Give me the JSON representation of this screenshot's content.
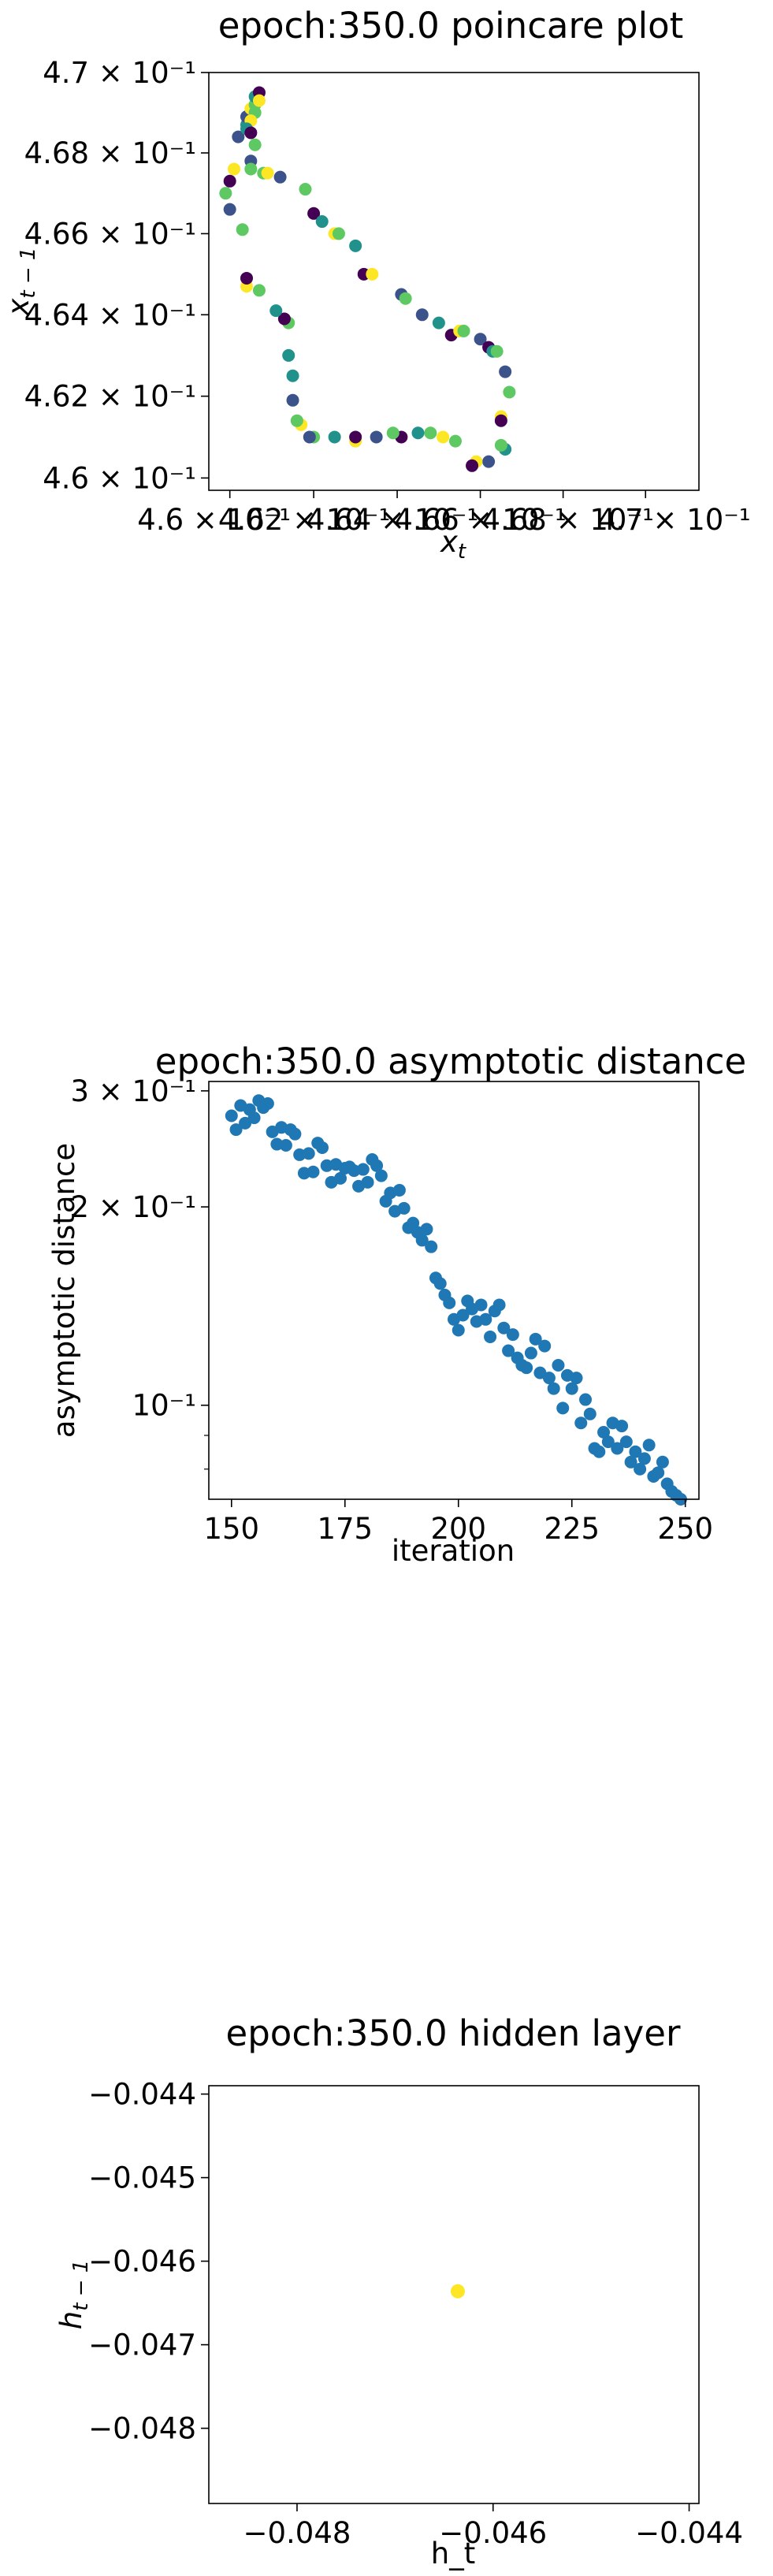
{
  "chart_data": [
    {
      "type": "scatter",
      "title": "epoch:350.0 poincare plot",
      "xlabel": "x_t",
      "ylabel": "x_t-1",
      "xscale": "log",
      "yscale": "log",
      "xlim": [
        0.4595,
        0.4713
      ],
      "ylim": [
        0.4597,
        0.47
      ],
      "x_ticks": [
        0.46,
        0.462,
        0.464,
        0.466,
        0.468,
        0.47
      ],
      "x_tick_labels": [
        "4.6 × 10⁻¹",
        "4.62 × 10⁻¹",
        "4.64 × 10⁻¹",
        "4.66 × 10⁻¹",
        "4.68 × 10⁻¹",
        "4.7 × 10⁻¹"
      ],
      "y_ticks": [
        0.46,
        0.462,
        0.464,
        0.466,
        0.468,
        0.47
      ],
      "y_tick_labels": [
        "4.6 × 10⁻¹",
        "4.62 × 10⁻¹",
        "4.64 × 10⁻¹",
        "4.66 × 10⁻¹",
        "4.68 × 10⁻¹",
        "4.7 × 10⁻¹"
      ],
      "grid": false,
      "colormap": "viridis",
      "palette": [
        "#440154",
        "#3b528b",
        "#21918c",
        "#5ec962",
        "#fde725"
      ],
      "points": [
        {
          "x": 0.46,
          "y": 0.4673,
          "c": 0
        },
        {
          "x": 0.4601,
          "y": 0.4676,
          "c": 4
        },
        {
          "x": 0.4599,
          "y": 0.467,
          "c": 3
        },
        {
          "x": 0.46,
          "y": 0.4666,
          "c": 1
        },
        {
          "x": 0.4603,
          "y": 0.4661,
          "c": 3
        },
        {
          "x": 0.4602,
          "y": 0.4684,
          "c": 1
        },
        {
          "x": 0.4604,
          "y": 0.4687,
          "c": 2
        },
        {
          "x": 0.4604,
          "y": 0.4689,
          "c": 1
        },
        {
          "x": 0.4605,
          "y": 0.4691,
          "c": 4
        },
        {
          "x": 0.4606,
          "y": 0.4692,
          "c": 3
        },
        {
          "x": 0.4606,
          "y": 0.4694,
          "c": 2
        },
        {
          "x": 0.4607,
          "y": 0.4695,
          "c": 0
        },
        {
          "x": 0.4607,
          "y": 0.4693,
          "c": 4
        },
        {
          "x": 0.4606,
          "y": 0.469,
          "c": 3
        },
        {
          "x": 0.4605,
          "y": 0.4688,
          "c": 4
        },
        {
          "x": 0.4604,
          "y": 0.4686,
          "c": 2
        },
        {
          "x": 0.4605,
          "y": 0.4685,
          "c": 0
        },
        {
          "x": 0.4606,
          "y": 0.4682,
          "c": 3
        },
        {
          "x": 0.4605,
          "y": 0.4678,
          "c": 1
        },
        {
          "x": 0.4605,
          "y": 0.4676,
          "c": 3
        },
        {
          "x": 0.4608,
          "y": 0.4675,
          "c": 3
        },
        {
          "x": 0.4609,
          "y": 0.4675,
          "c": 4
        },
        {
          "x": 0.4612,
          "y": 0.4674,
          "c": 1
        },
        {
          "x": 0.4618,
          "y": 0.4671,
          "c": 3
        },
        {
          "x": 0.462,
          "y": 0.4665,
          "c": 0
        },
        {
          "x": 0.4622,
          "y": 0.4663,
          "c": 2
        },
        {
          "x": 0.4625,
          "y": 0.466,
          "c": 4
        },
        {
          "x": 0.4626,
          "y": 0.466,
          "c": 3
        },
        {
          "x": 0.463,
          "y": 0.4657,
          "c": 2
        },
        {
          "x": 0.4632,
          "y": 0.465,
          "c": 0
        },
        {
          "x": 0.4634,
          "y": 0.465,
          "c": 4
        },
        {
          "x": 0.4641,
          "y": 0.4645,
          "c": 1
        },
        {
          "x": 0.4642,
          "y": 0.4644,
          "c": 3
        },
        {
          "x": 0.4646,
          "y": 0.464,
          "c": 1
        },
        {
          "x": 0.465,
          "y": 0.4638,
          "c": 2
        },
        {
          "x": 0.4653,
          "y": 0.4635,
          "c": 0
        },
        {
          "x": 0.4655,
          "y": 0.4636,
          "c": 4
        },
        {
          "x": 0.4656,
          "y": 0.4636,
          "c": 3
        },
        {
          "x": 0.466,
          "y": 0.4634,
          "c": 1
        },
        {
          "x": 0.4662,
          "y": 0.4632,
          "c": 0
        },
        {
          "x": 0.4663,
          "y": 0.4631,
          "c": 2
        },
        {
          "x": 0.4664,
          "y": 0.4631,
          "c": 3
        },
        {
          "x": 0.4666,
          "y": 0.4626,
          "c": 1
        },
        {
          "x": 0.4667,
          "y": 0.4621,
          "c": 3
        },
        {
          "x": 0.4665,
          "y": 0.4615,
          "c": 4
        },
        {
          "x": 0.4665,
          "y": 0.4614,
          "c": 0
        },
        {
          "x": 0.4666,
          "y": 0.4607,
          "c": 2
        },
        {
          "x": 0.4665,
          "y": 0.4608,
          "c": 3
        },
        {
          "x": 0.4662,
          "y": 0.4604,
          "c": 1
        },
        {
          "x": 0.4659,
          "y": 0.4604,
          "c": 4
        },
        {
          "x": 0.4658,
          "y": 0.4603,
          "c": 0
        },
        {
          "x": 0.4654,
          "y": 0.4609,
          "c": 3
        },
        {
          "x": 0.4651,
          "y": 0.461,
          "c": 4
        },
        {
          "x": 0.4648,
          "y": 0.4611,
          "c": 3
        },
        {
          "x": 0.4645,
          "y": 0.4611,
          "c": 2
        },
        {
          "x": 0.4641,
          "y": 0.461,
          "c": 0
        },
        {
          "x": 0.4639,
          "y": 0.4611,
          "c": 3
        },
        {
          "x": 0.4635,
          "y": 0.461,
          "c": 1
        },
        {
          "x": 0.463,
          "y": 0.4609,
          "c": 4
        },
        {
          "x": 0.463,
          "y": 0.461,
          "c": 0
        },
        {
          "x": 0.4625,
          "y": 0.461,
          "c": 2
        },
        {
          "x": 0.462,
          "y": 0.461,
          "c": 3
        },
        {
          "x": 0.4619,
          "y": 0.461,
          "c": 1
        },
        {
          "x": 0.4617,
          "y": 0.4613,
          "c": 4
        },
        {
          "x": 0.4616,
          "y": 0.4614,
          "c": 3
        },
        {
          "x": 0.4615,
          "y": 0.4619,
          "c": 1
        },
        {
          "x": 0.4615,
          "y": 0.4625,
          "c": 2
        },
        {
          "x": 0.4614,
          "y": 0.463,
          "c": 2
        },
        {
          "x": 0.4614,
          "y": 0.4638,
          "c": 3
        },
        {
          "x": 0.4613,
          "y": 0.4639,
          "c": 0
        },
        {
          "x": 0.4611,
          "y": 0.4641,
          "c": 2
        },
        {
          "x": 0.4607,
          "y": 0.4646,
          "c": 3
        },
        {
          "x": 0.4604,
          "y": 0.4647,
          "c": 4
        },
        {
          "x": 0.4604,
          "y": 0.4649,
          "c": 0
        }
      ]
    },
    {
      "type": "scatter",
      "title": "epoch:350.0 asymptotic distance",
      "xlabel": "iteration",
      "ylabel": "asymptotic distance",
      "yscale": "log",
      "xlim": [
        145,
        253
      ],
      "ylim": [
        0.072,
        0.31
      ],
      "x_ticks": [
        150,
        175,
        200,
        225,
        250
      ],
      "x_tick_labels": [
        "150",
        "175",
        "200",
        "225",
        "250"
      ],
      "y_major_ticks": [
        0.1,
        0.2,
        0.3
      ],
      "y_tick_labels": [
        "10⁻¹",
        "2 × 10⁻¹",
        "3 × 10⁻¹"
      ],
      "grid": false,
      "color": "#1f77b4",
      "x": [
        150,
        151,
        152,
        153,
        154,
        155,
        156,
        157,
        158,
        159,
        160,
        161,
        162,
        163,
        164,
        165,
        166,
        167,
        168,
        169,
        170,
        171,
        172,
        173,
        174,
        175,
        176,
        177,
        178,
        179,
        180,
        181,
        182,
        183,
        184,
        185,
        186,
        187,
        188,
        189,
        190,
        191,
        192,
        193,
        194,
        195,
        196,
        197,
        198,
        199,
        200,
        201,
        202,
        203,
        204,
        205,
        206,
        207,
        208,
        209,
        210,
        211,
        212,
        213,
        214,
        215,
        216,
        217,
        218,
        219,
        220,
        221,
        222,
        223,
        224,
        225,
        226,
        227,
        228,
        229,
        230,
        231,
        232,
        233,
        234,
        235,
        236,
        237,
        238,
        239,
        240,
        241,
        242,
        243,
        244,
        245,
        246,
        247,
        248,
        249
      ],
      "y": [
        0.275,
        0.262,
        0.285,
        0.268,
        0.281,
        0.273,
        0.29,
        0.283,
        0.287,
        0.26,
        0.249,
        0.264,
        0.248,
        0.262,
        0.258,
        0.24,
        0.225,
        0.241,
        0.226,
        0.25,
        0.246,
        0.231,
        0.218,
        0.232,
        0.221,
        0.229,
        0.23,
        0.227,
        0.215,
        0.228,
        0.218,
        0.236,
        0.231,
        0.223,
        0.204,
        0.21,
        0.197,
        0.212,
        0.199,
        0.186,
        0.189,
        0.183,
        0.178,
        0.185,
        0.174,
        0.156,
        0.153,
        0.147,
        0.143,
        0.135,
        0.13,
        0.137,
        0.144,
        0.14,
        0.134,
        0.142,
        0.135,
        0.127,
        0.139,
        0.142,
        0.131,
        0.121,
        0.128,
        0.118,
        0.115,
        0.114,
        0.12,
        0.126,
        0.112,
        0.123,
        0.11,
        0.106,
        0.115,
        0.099,
        0.111,
        0.106,
        0.11,
        0.094,
        0.102,
        0.097,
        0.086,
        0.085,
        0.091,
        0.088,
        0.094,
        0.086,
        0.093,
        0.088,
        0.082,
        0.085,
        0.08,
        0.083,
        0.087,
        0.078,
        0.079,
        0.082,
        0.076,
        0.074,
        0.073,
        0.072
      ]
    },
    {
      "type": "scatter",
      "title": "epoch:350.0 hidden layer",
      "xlabel": "h_t",
      "ylabel": "h_t-1",
      "xlim": [
        -0.0489,
        -0.0439
      ],
      "ylim": [
        -0.0489,
        -0.0439
      ],
      "x_ticks": [
        -0.048,
        -0.046,
        -0.044
      ],
      "x_tick_labels": [
        "−0.048",
        "−0.046",
        "−0.044"
      ],
      "y_ticks": [
        -0.048,
        -0.047,
        -0.046,
        -0.045,
        -0.044
      ],
      "y_tick_labels": [
        "−0.048",
        "−0.047",
        "−0.046",
        "−0.045",
        "−0.044"
      ],
      "grid": false,
      "color": "#fde725",
      "points": [
        {
          "x": -0.04636,
          "y": -0.04636
        }
      ]
    }
  ]
}
